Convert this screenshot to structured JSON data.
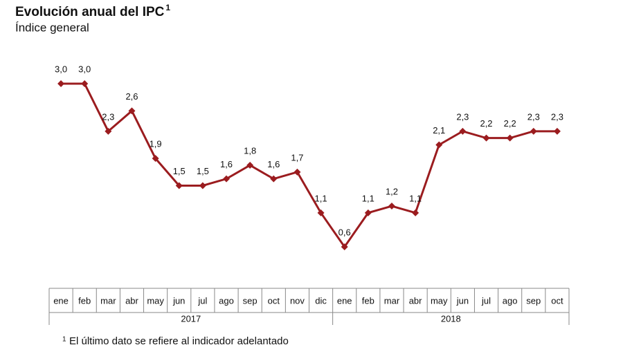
{
  "chart_data": {
    "type": "line",
    "title": "Evolución anual del IPC",
    "title_superscript": "1",
    "subtitle": "Índice general",
    "category_groups": [
      {
        "name": "2017",
        "categories": [
          "ene",
          "feb",
          "mar",
          "abr",
          "may",
          "jun",
          "jul",
          "ago",
          "sep",
          "oct",
          "nov",
          "dic"
        ]
      },
      {
        "name": "2018",
        "categories": [
          "ene",
          "feb",
          "mar",
          "abr",
          "may",
          "jun",
          "jul",
          "ago",
          "sep",
          "oct"
        ]
      }
    ],
    "series": [
      {
        "color": "#9b1c1f",
        "values": [
          3.0,
          3.0,
          2.3,
          2.6,
          1.9,
          1.5,
          1.5,
          1.6,
          1.8,
          1.6,
          1.7,
          1.1,
          0.6,
          1.1,
          1.2,
          1.1,
          2.1,
          2.3,
          2.2,
          2.2,
          2.3,
          2.3
        ],
        "value_labels": [
          "3,0",
          "3,0",
          "2,3",
          "2,6",
          "1,9",
          "1,5",
          "1,5",
          "1,6",
          "1,8",
          "1,6",
          "1,7",
          "1,1",
          "0,6",
          "1,1",
          "1,2",
          "1,1",
          "2,1",
          "2,3",
          "2,2",
          "2,2",
          "2,3",
          "2,3"
        ]
      }
    ],
    "ylim": [
      0,
      3
    ],
    "footnote_marker": "1",
    "footnote": "El último dato se refiere al indicador adelantado"
  }
}
